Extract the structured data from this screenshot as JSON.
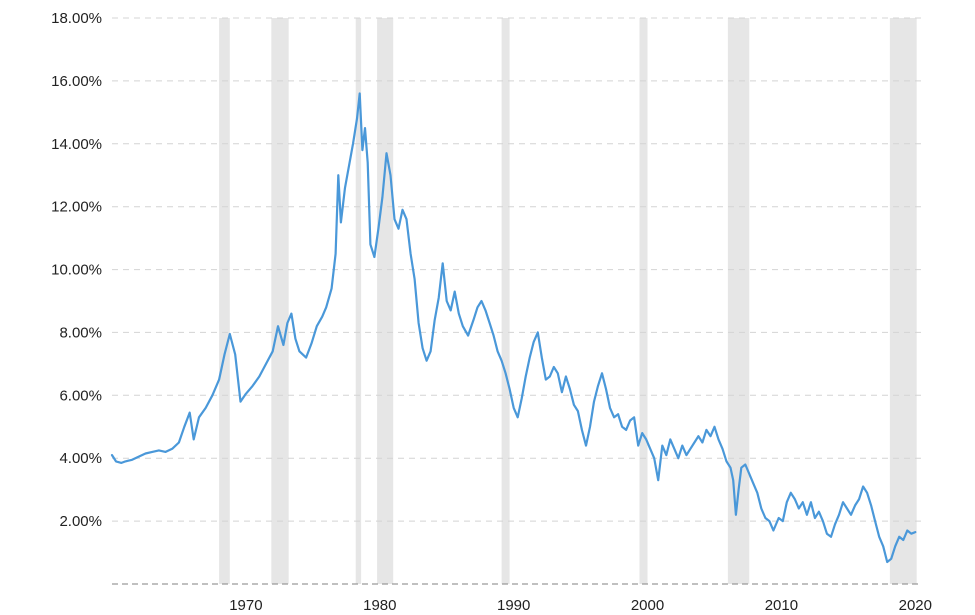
{
  "chart_data": {
    "type": "line",
    "title": "",
    "xlabel": "",
    "ylabel": "",
    "xlim": [
      1960,
      2020.5
    ],
    "ylim": [
      0,
      18
    ],
    "y_ticks": [
      {
        "value": 2,
        "label": "2.00%"
      },
      {
        "value": 4,
        "label": "4.00%"
      },
      {
        "value": 6,
        "label": "6.00%"
      },
      {
        "value": 8,
        "label": "8.00%"
      },
      {
        "value": 10,
        "label": "10.00%"
      },
      {
        "value": 12,
        "label": "12.00%"
      },
      {
        "value": 14,
        "label": "14.00%"
      },
      {
        "value": 16,
        "label": "16.00%"
      },
      {
        "value": 18,
        "label": "18.00%"
      }
    ],
    "x_ticks": [
      {
        "value": 1970,
        "label": "1970"
      },
      {
        "value": 1980,
        "label": "1980"
      },
      {
        "value": 1990,
        "label": "1990"
      },
      {
        "value": 2000,
        "label": "2000"
      },
      {
        "value": 2010,
        "label": "2010"
      },
      {
        "value": 2020,
        "label": "2020"
      }
    ],
    "grid": true,
    "legend": "none",
    "recession_bands": [
      [
        1968.0,
        1968.8
      ],
      [
        1971.9,
        1973.2
      ],
      [
        1978.2,
        1978.6
      ],
      [
        1979.8,
        1981.0
      ],
      [
        1989.1,
        1989.7
      ],
      [
        1999.4,
        2000.0
      ],
      [
        2006.0,
        2007.6
      ],
      [
        2018.1,
        2020.1
      ]
    ],
    "series": [
      {
        "color": "#4a98d9",
        "points": [
          [
            1960.0,
            4.1
          ],
          [
            1960.3,
            3.9
          ],
          [
            1960.7,
            3.85
          ],
          [
            1961.0,
            3.9
          ],
          [
            1961.5,
            3.95
          ],
          [
            1962.0,
            4.05
          ],
          [
            1962.5,
            4.15
          ],
          [
            1963.0,
            4.2
          ],
          [
            1963.5,
            4.25
          ],
          [
            1964.0,
            4.2
          ],
          [
            1964.5,
            4.3
          ],
          [
            1965.0,
            4.5
          ],
          [
            1965.4,
            5.0
          ],
          [
            1965.8,
            5.45
          ],
          [
            1966.1,
            4.6
          ],
          [
            1966.5,
            5.3
          ],
          [
            1967.0,
            5.6
          ],
          [
            1967.5,
            6.0
          ],
          [
            1968.0,
            6.5
          ],
          [
            1968.4,
            7.3
          ],
          [
            1968.8,
            7.95
          ],
          [
            1969.2,
            7.3
          ],
          [
            1969.6,
            5.8
          ],
          [
            1970.0,
            6.05
          ],
          [
            1970.5,
            6.3
          ],
          [
            1971.0,
            6.6
          ],
          [
            1971.5,
            7.0
          ],
          [
            1972.0,
            7.4
          ],
          [
            1972.4,
            8.2
          ],
          [
            1972.8,
            7.6
          ],
          [
            1973.1,
            8.3
          ],
          [
            1973.4,
            8.6
          ],
          [
            1973.7,
            7.8
          ],
          [
            1974.0,
            7.4
          ],
          [
            1974.5,
            7.2
          ],
          [
            1974.9,
            7.65
          ],
          [
            1975.3,
            8.2
          ],
          [
            1975.7,
            8.5
          ],
          [
            1976.0,
            8.8
          ],
          [
            1976.4,
            9.4
          ],
          [
            1976.7,
            10.5
          ],
          [
            1976.9,
            13.0
          ],
          [
            1977.1,
            11.5
          ],
          [
            1977.4,
            12.6
          ],
          [
            1977.7,
            13.3
          ],
          [
            1978.0,
            14.0
          ],
          [
            1978.3,
            14.8
          ],
          [
            1978.5,
            15.6
          ],
          [
            1978.7,
            13.8
          ],
          [
            1978.9,
            14.5
          ],
          [
            1979.1,
            13.4
          ],
          [
            1979.3,
            10.8
          ],
          [
            1979.6,
            10.4
          ],
          [
            1979.9,
            11.3
          ],
          [
            1980.2,
            12.3
          ],
          [
            1980.5,
            13.7
          ],
          [
            1980.8,
            13.0
          ],
          [
            1981.1,
            11.6
          ],
          [
            1981.4,
            11.3
          ],
          [
            1981.7,
            11.9
          ],
          [
            1982.0,
            11.6
          ],
          [
            1982.3,
            10.5
          ],
          [
            1982.6,
            9.7
          ],
          [
            1982.9,
            8.3
          ],
          [
            1983.2,
            7.5
          ],
          [
            1983.5,
            7.1
          ],
          [
            1983.8,
            7.4
          ],
          [
            1984.1,
            8.4
          ],
          [
            1984.4,
            9.1
          ],
          [
            1984.7,
            10.2
          ],
          [
            1985.0,
            9.0
          ],
          [
            1985.3,
            8.7
          ],
          [
            1985.6,
            9.3
          ],
          [
            1985.9,
            8.6
          ],
          [
            1986.2,
            8.2
          ],
          [
            1986.6,
            7.9
          ],
          [
            1987.0,
            8.4
          ],
          [
            1987.3,
            8.8
          ],
          [
            1987.6,
            9.0
          ],
          [
            1987.9,
            8.7
          ],
          [
            1988.2,
            8.3
          ],
          [
            1988.5,
            7.9
          ],
          [
            1988.8,
            7.4
          ],
          [
            1989.1,
            7.1
          ],
          [
            1989.4,
            6.7
          ],
          [
            1989.7,
            6.2
          ],
          [
            1990.0,
            5.6
          ],
          [
            1990.3,
            5.3
          ],
          [
            1990.6,
            5.9
          ],
          [
            1990.9,
            6.6
          ],
          [
            1991.2,
            7.2
          ],
          [
            1991.5,
            7.7
          ],
          [
            1991.8,
            8.0
          ],
          [
            1992.1,
            7.2
          ],
          [
            1992.4,
            6.5
          ],
          [
            1992.7,
            6.6
          ],
          [
            1993.0,
            6.9
          ],
          [
            1993.3,
            6.7
          ],
          [
            1993.6,
            6.1
          ],
          [
            1993.9,
            6.6
          ],
          [
            1994.2,
            6.2
          ],
          [
            1994.5,
            5.7
          ],
          [
            1994.8,
            5.5
          ],
          [
            1995.1,
            4.9
          ],
          [
            1995.4,
            4.4
          ],
          [
            1995.7,
            5.0
          ],
          [
            1996.0,
            5.8
          ],
          [
            1996.3,
            6.3
          ],
          [
            1996.6,
            6.7
          ],
          [
            1996.9,
            6.2
          ],
          [
            1997.2,
            5.6
          ],
          [
            1997.5,
            5.3
          ],
          [
            1997.8,
            5.4
          ],
          [
            1998.1,
            5.0
          ],
          [
            1998.4,
            4.9
          ],
          [
            1998.7,
            5.2
          ],
          [
            1999.0,
            5.3
          ],
          [
            1999.3,
            4.4
          ],
          [
            1999.6,
            4.8
          ],
          [
            1999.9,
            4.6
          ],
          [
            2000.2,
            4.3
          ],
          [
            2000.5,
            4.0
          ],
          [
            2000.8,
            3.3
          ],
          [
            2001.1,
            4.4
          ],
          [
            2001.4,
            4.1
          ],
          [
            2001.7,
            4.6
          ],
          [
            2002.0,
            4.3
          ],
          [
            2002.3,
            4.0
          ],
          [
            2002.6,
            4.4
          ],
          [
            2002.9,
            4.1
          ],
          [
            2003.2,
            4.3
          ],
          [
            2003.5,
            4.5
          ],
          [
            2003.8,
            4.7
          ],
          [
            2004.1,
            4.5
          ],
          [
            2004.4,
            4.9
          ],
          [
            2004.7,
            4.7
          ],
          [
            2005.0,
            5.0
          ],
          [
            2005.3,
            4.6
          ],
          [
            2005.6,
            4.3
          ],
          [
            2005.9,
            3.9
          ],
          [
            2006.2,
            3.7
          ],
          [
            2006.4,
            3.3
          ],
          [
            2006.6,
            2.2
          ],
          [
            2006.8,
            3.0
          ],
          [
            2007.0,
            3.7
          ],
          [
            2007.3,
            3.8
          ],
          [
            2007.6,
            3.5
          ],
          [
            2007.9,
            3.2
          ],
          [
            2008.2,
            2.9
          ],
          [
            2008.5,
            2.4
          ],
          [
            2008.8,
            2.1
          ],
          [
            2009.1,
            2.0
          ],
          [
            2009.4,
            1.7
          ],
          [
            2009.8,
            2.1
          ],
          [
            2010.1,
            2.0
          ],
          [
            2010.4,
            2.6
          ],
          [
            2010.7,
            2.9
          ],
          [
            2011.0,
            2.7
          ],
          [
            2011.3,
            2.4
          ],
          [
            2011.6,
            2.6
          ],
          [
            2011.9,
            2.2
          ],
          [
            2012.2,
            2.6
          ],
          [
            2012.5,
            2.1
          ],
          [
            2012.8,
            2.3
          ],
          [
            2013.1,
            2.0
          ],
          [
            2013.4,
            1.6
          ],
          [
            2013.7,
            1.5
          ],
          [
            2014.0,
            1.9
          ],
          [
            2014.3,
            2.2
          ],
          [
            2014.6,
            2.6
          ],
          [
            2014.9,
            2.4
          ],
          [
            2015.2,
            2.2
          ],
          [
            2015.5,
            2.5
          ],
          [
            2015.8,
            2.7
          ],
          [
            2016.1,
            3.1
          ],
          [
            2016.4,
            2.9
          ],
          [
            2016.7,
            2.5
          ],
          [
            2017.0,
            2.0
          ],
          [
            2017.3,
            1.5
          ],
          [
            2017.6,
            1.2
          ],
          [
            2017.9,
            0.7
          ],
          [
            2018.2,
            0.8
          ],
          [
            2018.5,
            1.2
          ],
          [
            2018.8,
            1.5
          ],
          [
            2019.1,
            1.4
          ],
          [
            2019.4,
            1.7
          ],
          [
            2019.7,
            1.6
          ],
          [
            2020.0,
            1.65
          ]
        ]
      }
    ]
  }
}
